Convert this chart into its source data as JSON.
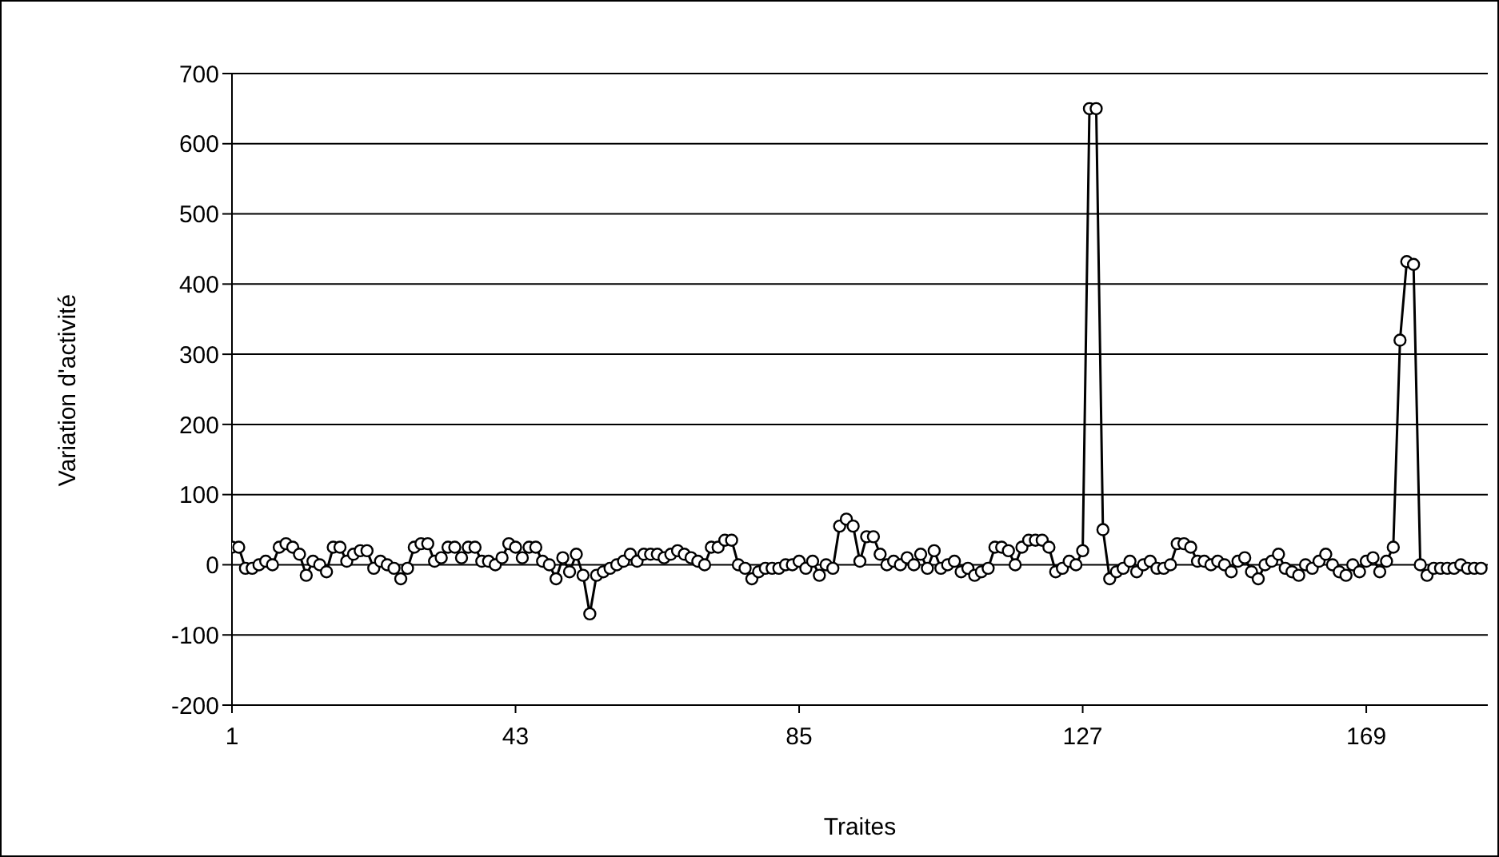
{
  "chart_data": {
    "type": "line",
    "xlabel": "Traites",
    "ylabel": "Variation d'activité",
    "x": [
      1,
      2,
      3,
      4,
      5,
      6,
      7,
      8,
      9,
      10,
      11,
      12,
      13,
      14,
      15,
      16,
      17,
      18,
      19,
      20,
      21,
      22,
      23,
      24,
      25,
      26,
      27,
      28,
      29,
      30,
      31,
      32,
      33,
      34,
      35,
      36,
      37,
      38,
      39,
      40,
      41,
      42,
      43,
      44,
      45,
      46,
      47,
      48,
      49,
      50,
      51,
      52,
      53,
      54,
      55,
      56,
      57,
      58,
      59,
      60,
      61,
      62,
      63,
      64,
      65,
      66,
      67,
      68,
      69,
      70,
      71,
      72,
      73,
      74,
      75,
      76,
      77,
      78,
      79,
      80,
      81,
      82,
      83,
      84,
      85,
      86,
      87,
      88,
      89,
      90,
      91,
      92,
      93,
      94,
      95,
      96,
      97,
      98,
      99,
      100,
      101,
      102,
      103,
      104,
      105,
      106,
      107,
      108,
      109,
      110,
      111,
      112,
      113,
      114,
      115,
      116,
      117,
      118,
      119,
      120,
      121,
      122,
      123,
      124,
      125,
      126,
      127,
      128,
      129,
      130,
      131,
      132,
      133,
      134,
      135,
      136,
      137,
      138,
      139,
      140,
      141,
      142,
      143,
      144,
      145,
      146,
      147,
      148,
      149,
      150,
      151,
      152,
      153,
      154,
      155,
      156,
      157,
      158,
      159,
      160,
      161,
      162,
      163,
      164,
      165,
      166,
      167,
      168,
      169,
      170,
      171,
      172,
      173,
      174,
      175,
      176,
      177,
      178,
      179,
      180,
      181,
      182,
      183,
      184,
      185,
      186
    ],
    "series": [
      {
        "color": "#000000",
        "values": [
          25,
          25,
          -5,
          -5,
          0,
          5,
          0,
          25,
          30,
          25,
          15,
          -15,
          5,
          0,
          -10,
          25,
          25,
          5,
          15,
          20,
          20,
          -5,
          5,
          0,
          -5,
          -20,
          -5,
          25,
          30,
          30,
          5,
          10,
          25,
          25,
          10,
          25,
          25,
          5,
          5,
          0,
          10,
          30,
          25,
          10,
          25,
          25,
          5,
          0,
          -20,
          10,
          -10,
          15,
          -15,
          -70,
          -15,
          -10,
          -5,
          0,
          5,
          15,
          5,
          15,
          15,
          15,
          10,
          15,
          20,
          15,
          10,
          5,
          0,
          25,
          25,
          35,
          35,
          0,
          -5,
          -20,
          -10,
          -5,
          -5,
          -5,
          0,
          0,
          5,
          -5,
          5,
          -15,
          0,
          -5,
          55,
          65,
          55,
          5,
          40,
          40,
          15,
          0,
          5,
          0,
          10,
          0,
          15,
          -5,
          20,
          -5,
          0,
          5,
          -10,
          -5,
          -15,
          -10,
          -5,
          25,
          25,
          20,
          0,
          25,
          35,
          35,
          35,
          25,
          -10,
          -5,
          5,
          0,
          20,
          650,
          650,
          50,
          -20,
          -10,
          -5,
          5,
          -10,
          0,
          5,
          -5,
          -5,
          0,
          30,
          30,
          25,
          5,
          5,
          0,
          5,
          0,
          -10,
          5,
          10,
          -10,
          -20,
          0,
          5,
          15,
          -5,
          -10,
          -15,
          0,
          -5,
          5,
          15,
          0,
          -10,
          -15,
          0,
          -10,
          5,
          10,
          -10,
          5,
          25,
          320,
          432,
          428,
          0,
          -15,
          -5,
          -5,
          -5,
          -5,
          0,
          -5,
          -5,
          -5
        ]
      }
    ],
    "xlim": [
      1,
      187
    ],
    "xticks": [
      1,
      43,
      85,
      127,
      169
    ],
    "ylim": [
      -200,
      700
    ],
    "yticks": [
      -200,
      -100,
      0,
      100,
      200,
      300,
      400,
      500,
      600,
      700
    ],
    "grid": "y",
    "marker": "circle",
    "line_style": "solid"
  }
}
